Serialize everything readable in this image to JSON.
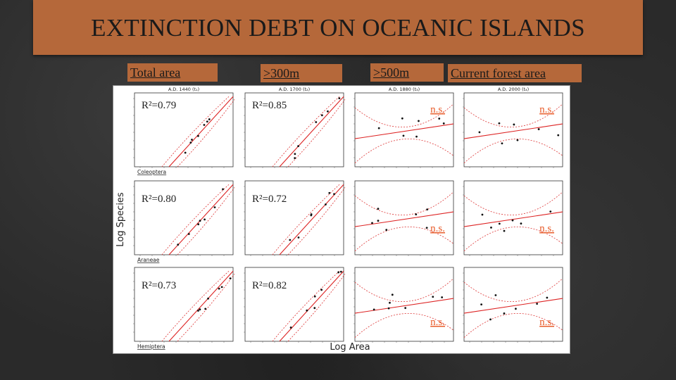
{
  "title": "EXTINCTION DEBT ON OCEANIC ISLANDS",
  "column_headers": [
    "Total area",
    ">300m",
    ">500m",
    "Current forest area"
  ],
  "ns_color": "#e85c2a",
  "title_bar_color": "#b5683a",
  "chart_data": {
    "type": "scatter",
    "xlabel": "Log Area",
    "ylabel": "Log Species",
    "period_headers": [
      "A.D. 1440 (t₁)",
      "A.D. 1700 (t₂)",
      "A.D. 1880 (t₃)",
      "A.D. 2000 (t₄)"
    ],
    "row_labels": [
      "Coleoptera",
      "Araneae",
      "Hemiptera"
    ],
    "panels": [
      {
        "row": 0,
        "col": 0,
        "stat": "R²=0.79",
        "significant": true
      },
      {
        "row": 0,
        "col": 1,
        "stat": "R²=0.85",
        "significant": true
      },
      {
        "row": 0,
        "col": 2,
        "stat": "n.s.",
        "significant": false
      },
      {
        "row": 0,
        "col": 3,
        "stat": "n.s.",
        "significant": false
      },
      {
        "row": 1,
        "col": 0,
        "stat": "R²=0.80",
        "significant": true
      },
      {
        "row": 1,
        "col": 1,
        "stat": "R²=0.72",
        "significant": true
      },
      {
        "row": 1,
        "col": 2,
        "stat": "n.s.",
        "significant": false
      },
      {
        "row": 1,
        "col": 3,
        "stat": "n.s.",
        "significant": false
      },
      {
        "row": 2,
        "col": 0,
        "stat": "R²=0.73",
        "significant": true
      },
      {
        "row": 2,
        "col": 1,
        "stat": "R²=0.82",
        "significant": true
      },
      {
        "row": 2,
        "col": 2,
        "stat": "n.s.",
        "significant": false
      },
      {
        "row": 2,
        "col": 3,
        "stat": "n.s.",
        "significant": false
      }
    ]
  }
}
